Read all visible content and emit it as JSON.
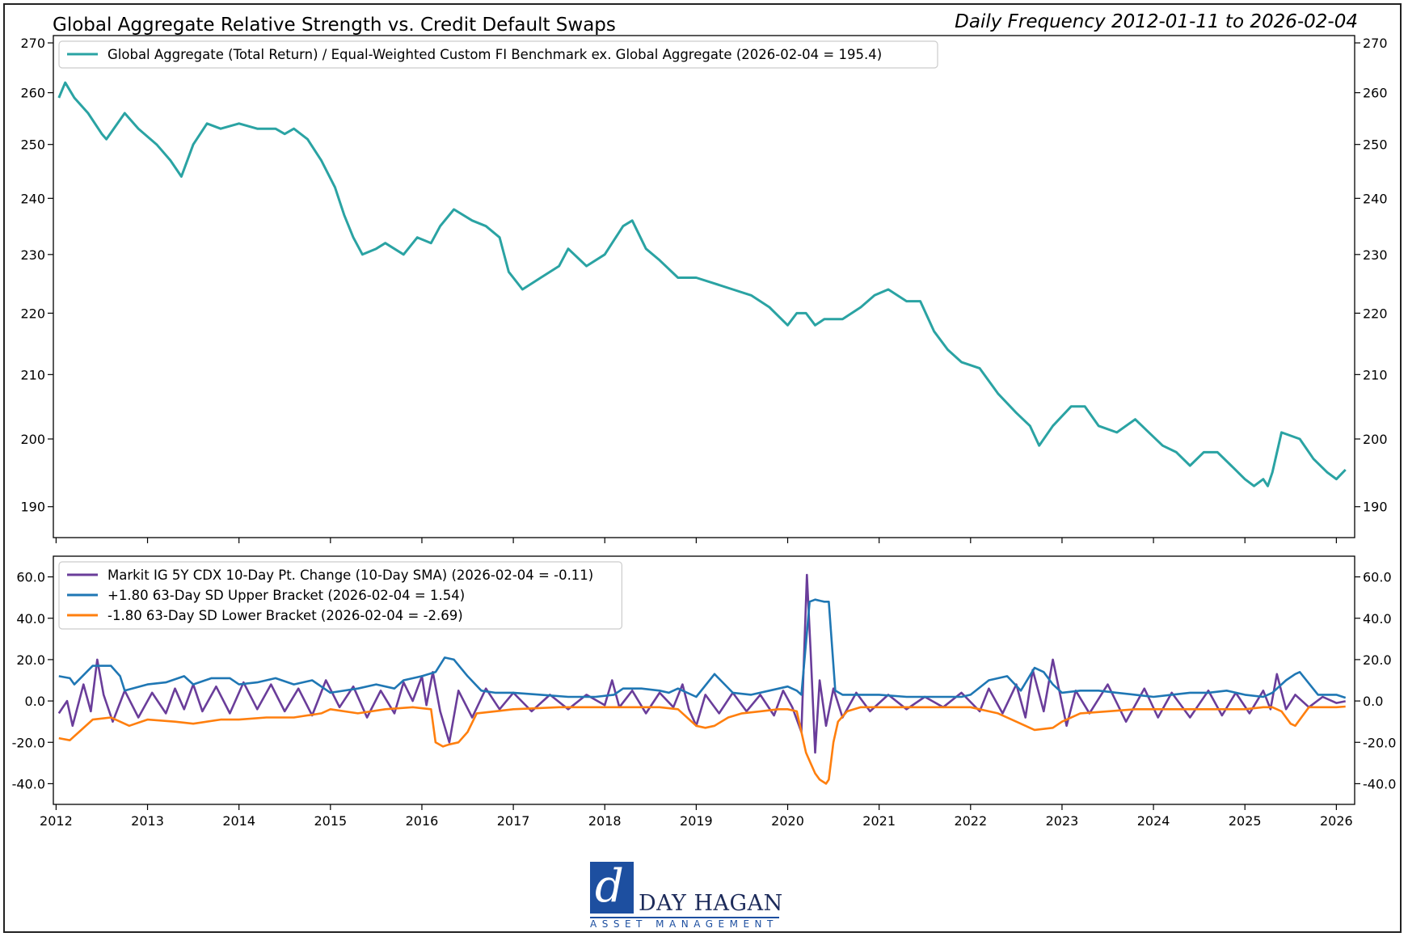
{
  "header": {
    "title": "Global Aggregate Relative Strength vs. Credit Default Swaps",
    "subtitle": "Daily Frequency 2012-01-11 to 2026-02-04"
  },
  "logo": {
    "name": "DAY HAGAN",
    "tagline": "ASSET MANAGEMENT"
  },
  "chart_data": [
    {
      "type": "line",
      "x_axis": {
        "min": 2011.97,
        "max": 2026.2,
        "ticks": [
          2012,
          2013,
          2014,
          2015,
          2016,
          2017,
          2018,
          2019,
          2020,
          2021,
          2022,
          2023,
          2024,
          2025,
          2026
        ]
      },
      "y_axis": {
        "scale": "log",
        "min": 185.6,
        "max": 271.5,
        "ticks": [
          190,
          200,
          210,
          220,
          230,
          240,
          250,
          260,
          270
        ],
        "tick_labels": [
          "190",
          "200",
          "210",
          "220",
          "230",
          "240",
          "250",
          "260",
          "270"
        ]
      },
      "legend_position": "top-left",
      "grid": false,
      "series": [
        {
          "name": "Global Aggregate (Total Return) / Equal-Weighted Custom FI Benchmark ex. Global Aggregate (2026-02-04 = 195.4)",
          "color": "#2aa3a3",
          "x": [
            2012.03,
            2012.1,
            2012.2,
            2012.35,
            2012.5,
            2012.55,
            2012.75,
            2012.9,
            2013.1,
            2013.25,
            2013.37,
            2013.5,
            2013.65,
            2013.8,
            2014.0,
            2014.2,
            2014.4,
            2014.5,
            2014.6,
            2014.75,
            2014.9,
            2015.05,
            2015.15,
            2015.25,
            2015.35,
            2015.5,
            2015.6,
            2015.8,
            2015.95,
            2016.1,
            2016.2,
            2016.35,
            2016.55,
            2016.7,
            2016.85,
            2016.95,
            2017.1,
            2017.3,
            2017.5,
            2017.6,
            2017.8,
            2018.0,
            2018.2,
            2018.3,
            2018.45,
            2018.6,
            2018.8,
            2019.0,
            2019.2,
            2019.4,
            2019.6,
            2019.8,
            2020.0,
            2020.1,
            2020.2,
            2020.3,
            2020.4,
            2020.6,
            2020.8,
            2020.95,
            2021.1,
            2021.3,
            2021.45,
            2021.6,
            2021.75,
            2021.9,
            2022.1,
            2022.3,
            2022.5,
            2022.65,
            2022.75,
            2022.9,
            2023.1,
            2023.25,
            2023.4,
            2023.6,
            2023.8,
            2023.95,
            2024.1,
            2024.25,
            2024.4,
            2024.55,
            2024.7,
            2024.85,
            2025.0,
            2025.1,
            2025.2,
            2025.25,
            2025.3,
            2025.4,
            2025.6,
            2025.75,
            2025.9,
            2026.0,
            2026.1
          ],
          "y": [
            259,
            262,
            259,
            256,
            252,
            251,
            256,
            253,
            250,
            247,
            244,
            250,
            254,
            253,
            254,
            253,
            253,
            252,
            253,
            251,
            247,
            242,
            237,
            233,
            230,
            231,
            232,
            230,
            233,
            232,
            235,
            238,
            236,
            235,
            233,
            227,
            224,
            226,
            228,
            231,
            228,
            230,
            235,
            236,
            231,
            229,
            226,
            226,
            225,
            224,
            223,
            221,
            218,
            220,
            220,
            218,
            219,
            219,
            221,
            223,
            224,
            222,
            222,
            217,
            214,
            212,
            211,
            207,
            204,
            202,
            199,
            202,
            205,
            205,
            202,
            201,
            203,
            201,
            199,
            198,
            196,
            198,
            198,
            196,
            194,
            193,
            194,
            193,
            195,
            201,
            200,
            197,
            195,
            194,
            195.4
          ]
        }
      ]
    },
    {
      "type": "line",
      "x_axis": {
        "min": 2011.97,
        "max": 2026.2,
        "ticks": [
          2012,
          2013,
          2014,
          2015,
          2016,
          2017,
          2018,
          2019,
          2020,
          2021,
          2022,
          2023,
          2024,
          2025,
          2026
        ],
        "tick_labels": [
          "2012",
          "2013",
          "2014",
          "2015",
          "2016",
          "2017",
          "2018",
          "2019",
          "2020",
          "2021",
          "2022",
          "2023",
          "2024",
          "2025",
          "2026"
        ]
      },
      "y_axis": {
        "min": -50,
        "max": 70,
        "ticks": [
          -40,
          -20,
          0,
          20,
          40,
          60
        ],
        "tick_labels": [
          "-40.0",
          "-20.0",
          "0.0",
          "20.0",
          "40.0",
          "60.0"
        ]
      },
      "legend_position": "top-left",
      "grid": false,
      "series": [
        {
          "name": "Markit IG 5Y CDX 10-Day Pt. Change (10-Day SMA) (2026-02-04 = -0.11)",
          "color": "#6a3d9a",
          "x": [
            2012.03,
            2012.12,
            2012.18,
            2012.3,
            2012.38,
            2012.45,
            2012.52,
            2012.62,
            2012.75,
            2012.9,
            2013.05,
            2013.2,
            2013.3,
            2013.4,
            2013.5,
            2013.6,
            2013.75,
            2013.9,
            2014.05,
            2014.2,
            2014.35,
            2014.5,
            2014.65,
            2014.8,
            2014.95,
            2015.1,
            2015.25,
            2015.4,
            2015.55,
            2015.7,
            2015.8,
            2015.9,
            2016.0,
            2016.05,
            2016.12,
            2016.2,
            2016.3,
            2016.4,
            2016.55,
            2016.7,
            2016.85,
            2017.0,
            2017.2,
            2017.4,
            2017.6,
            2017.8,
            2018.0,
            2018.08,
            2018.16,
            2018.3,
            2018.45,
            2018.6,
            2018.75,
            2018.85,
            2018.92,
            2019.0,
            2019.1,
            2019.25,
            2019.4,
            2019.55,
            2019.7,
            2019.85,
            2019.95,
            2020.05,
            2020.15,
            2020.21,
            2020.25,
            2020.3,
            2020.35,
            2020.42,
            2020.5,
            2020.6,
            2020.75,
            2020.9,
            2021.1,
            2021.3,
            2021.5,
            2021.7,
            2021.9,
            2022.1,
            2022.2,
            2022.35,
            2022.5,
            2022.6,
            2022.68,
            2022.8,
            2022.9,
            2023.05,
            2023.15,
            2023.3,
            2023.5,
            2023.7,
            2023.9,
            2024.05,
            2024.2,
            2024.4,
            2024.6,
            2024.75,
            2024.9,
            2025.05,
            2025.2,
            2025.28,
            2025.35,
            2025.45,
            2025.55,
            2025.7,
            2025.85,
            2026.0,
            2026.1
          ],
          "y": [
            -6,
            0,
            -12,
            8,
            -5,
            20,
            3,
            -10,
            5,
            -8,
            4,
            -6,
            6,
            -4,
            8,
            -5,
            7,
            -6,
            9,
            -4,
            8,
            -5,
            6,
            -7,
            10,
            -3,
            7,
            -8,
            5,
            -6,
            9,
            0,
            12,
            -2,
            14,
            -5,
            -20,
            5,
            -8,
            6,
            -4,
            4,
            -5,
            3,
            -4,
            3,
            -2,
            10,
            -3,
            5,
            -6,
            4,
            -3,
            8,
            -4,
            -12,
            3,
            -6,
            4,
            -5,
            3,
            -7,
            5,
            -3,
            -15,
            61,
            25,
            -25,
            10,
            -12,
            6,
            -8,
            4,
            -5,
            3,
            -4,
            2,
            -3,
            4,
            -5,
            6,
            -6,
            8,
            -8,
            15,
            -5,
            20,
            -12,
            5,
            -6,
            8,
            -10,
            6,
            -8,
            4,
            -8,
            5,
            -7,
            4,
            -6,
            5,
            -4,
            13,
            -4,
            3,
            -3,
            2,
            -1,
            -0.11
          ]
        },
        {
          "name": "+1.80 63-Day SD Upper Bracket (2026-02-04 = 1.54)",
          "color": "#1f77b4",
          "x": [
            2012.03,
            2012.15,
            2012.2,
            2012.4,
            2012.6,
            2012.7,
            2012.75,
            2013.0,
            2013.2,
            2013.4,
            2013.5,
            2013.7,
            2013.9,
            2014.0,
            2014.2,
            2014.4,
            2014.6,
            2014.8,
            2015.0,
            2015.3,
            2015.5,
            2015.7,
            2015.8,
            2016.0,
            2016.15,
            2016.25,
            2016.35,
            2016.5,
            2016.65,
            2016.8,
            2017.0,
            2017.3,
            2017.6,
            2017.9,
            2018.1,
            2018.2,
            2018.4,
            2018.6,
            2018.7,
            2018.8,
            2019.0,
            2019.2,
            2019.4,
            2019.6,
            2019.8,
            2020.0,
            2020.1,
            2020.15,
            2020.24,
            2020.3,
            2020.4,
            2020.45,
            2020.52,
            2020.6,
            2020.8,
            2021.0,
            2021.3,
            2021.6,
            2021.9,
            2022.0,
            2022.2,
            2022.4,
            2022.55,
            2022.7,
            2022.8,
            2022.9,
            2023.0,
            2023.2,
            2023.4,
            2023.6,
            2023.8,
            2024.0,
            2024.2,
            2024.4,
            2024.6,
            2024.8,
            2025.0,
            2025.2,
            2025.3,
            2025.45,
            2025.55,
            2025.6,
            2025.8,
            2026.0,
            2026.1
          ],
          "y": [
            12,
            11,
            8,
            17,
            17,
            12,
            5,
            8,
            9,
            12,
            8,
            11,
            11,
            8,
            9,
            11,
            8,
            10,
            4,
            6,
            8,
            6,
            10,
            12,
            14,
            21,
            20,
            12,
            5,
            4,
            4,
            3,
            2,
            2,
            3,
            6,
            6,
            5,
            4,
            6,
            2,
            13,
            4,
            3,
            5,
            7,
            5,
            3,
            48,
            49,
            48,
            48,
            5,
            3,
            3,
            3,
            2,
            2,
            2,
            3,
            10,
            12,
            5,
            16,
            14,
            8,
            4,
            5,
            5,
            4,
            3,
            2,
            3,
            4,
            4,
            5,
            3,
            2,
            4,
            10,
            13,
            14,
            3,
            3,
            1.54
          ]
        },
        {
          "name": "-1.80 63-Day SD Lower Bracket (2026-02-04 = -2.69)",
          "color": "#ff7f0e",
          "x": [
            2012.03,
            2012.15,
            2012.25,
            2012.4,
            2012.6,
            2012.8,
            2013.0,
            2013.3,
            2013.5,
            2013.8,
            2014.0,
            2014.3,
            2014.6,
            2014.9,
            2015.0,
            2015.3,
            2015.6,
            2015.9,
            2016.1,
            2016.15,
            2016.23,
            2016.3,
            2016.4,
            2016.5,
            2016.6,
            2016.8,
            2017.0,
            2017.5,
            2018.0,
            2018.3,
            2018.6,
            2018.8,
            2019.0,
            2019.1,
            2019.2,
            2019.35,
            2019.5,
            2019.7,
            2019.9,
            2020.0,
            2020.1,
            2020.2,
            2020.25,
            2020.3,
            2020.35,
            2020.42,
            2020.45,
            2020.5,
            2020.55,
            2020.65,
            2020.8,
            2021.0,
            2021.5,
            2022.0,
            2022.3,
            2022.5,
            2022.6,
            2022.7,
            2022.9,
            2023.0,
            2023.2,
            2023.5,
            2023.8,
            2024.0,
            2024.3,
            2024.6,
            2024.9,
            2025.0,
            2025.2,
            2025.3,
            2025.4,
            2025.5,
            2025.55,
            2025.7,
            2026.0,
            2026.1
          ],
          "y": [
            -18,
            -19,
            -15,
            -9,
            -8,
            -12,
            -9,
            -10,
            -11,
            -9,
            -9,
            -8,
            -8,
            -6,
            -4,
            -6,
            -4,
            -3,
            -4,
            -20,
            -22,
            -21,
            -20,
            -15,
            -6,
            -5,
            -4,
            -3,
            -3,
            -3,
            -3,
            -4,
            -12,
            -13,
            -12,
            -8,
            -6,
            -5,
            -4,
            -4,
            -5,
            -25,
            -30,
            -35,
            -38,
            -40,
            -38,
            -20,
            -10,
            -5,
            -3,
            -3,
            -3,
            -3,
            -6,
            -10,
            -12,
            -14,
            -13,
            -10,
            -6,
            -5,
            -4,
            -4,
            -4,
            -4,
            -4,
            -4,
            -3,
            -3,
            -5,
            -11,
            -12,
            -3,
            -3,
            -2.69
          ]
        }
      ]
    }
  ]
}
